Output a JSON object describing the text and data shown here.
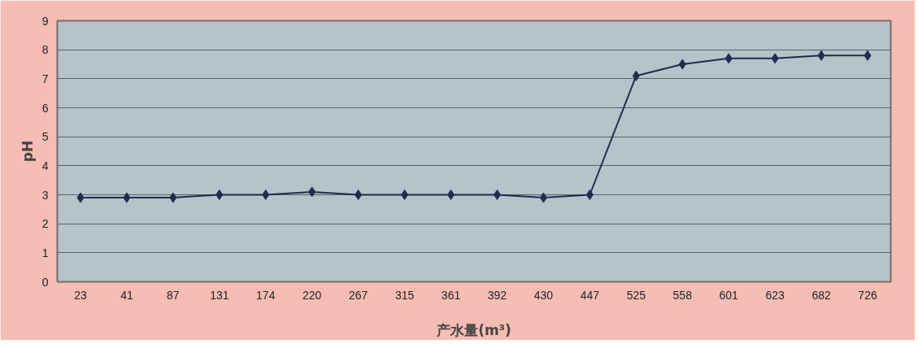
{
  "chart_data": {
    "type": "line",
    "xlabel": "产水量(m³)",
    "ylabel": "pH",
    "categories": [
      "23",
      "41",
      "87",
      "131",
      "174",
      "220",
      "267",
      "315",
      "361",
      "392",
      "430",
      "447",
      "525",
      "558",
      "601",
      "623",
      "682",
      "726"
    ],
    "series": [
      {
        "color": "#1f2d4d",
        "values": [
          2.9,
          2.9,
          2.9,
          3.0,
          3.0,
          3.1,
          3.0,
          3.0,
          3.0,
          3.0,
          2.9,
          3.0,
          7.1,
          7.5,
          7.7,
          7.7,
          7.8,
          7.8
        ]
      }
    ],
    "ylim": [
      0,
      9
    ],
    "yticks": [
      0,
      1,
      2,
      3,
      4,
      5,
      6,
      7,
      8,
      9
    ],
    "grid": "y",
    "marker": "diamond",
    "line_style": "solid"
  }
}
